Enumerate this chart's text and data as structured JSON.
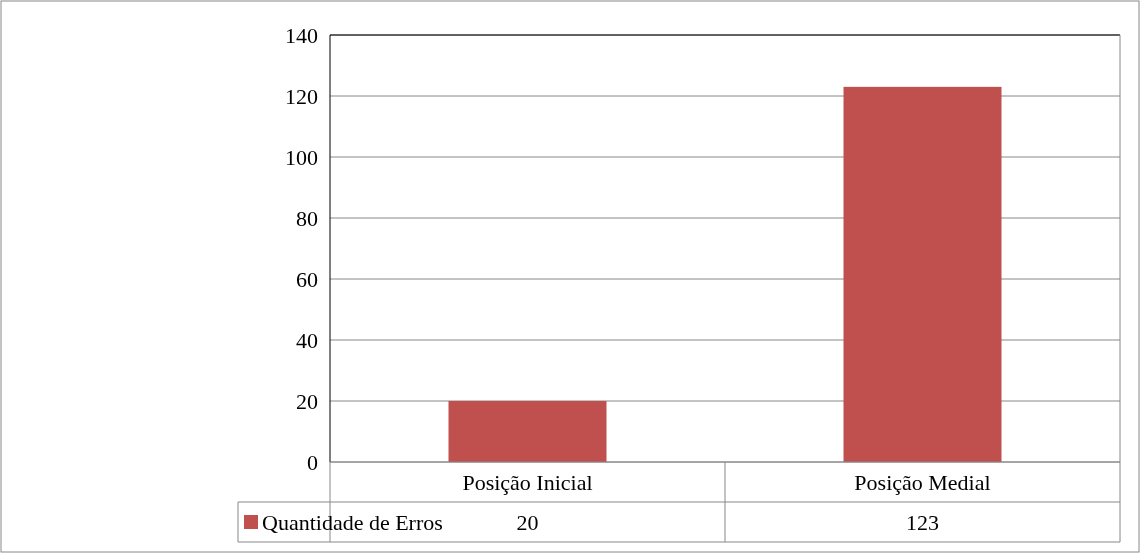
{
  "chart_data": {
    "type": "bar",
    "categories": [
      "Posição Inicial",
      "Posição Medial"
    ],
    "series": [
      {
        "name": "Quantidade de Erros",
        "color": "#c0504d",
        "values": [
          20,
          123
        ]
      }
    ],
    "ylim": [
      0,
      140
    ],
    "yticks": [
      0,
      20,
      40,
      60,
      80,
      100,
      120,
      140
    ],
    "grid": "y",
    "data_labels": true,
    "legend": "bottom left"
  }
}
